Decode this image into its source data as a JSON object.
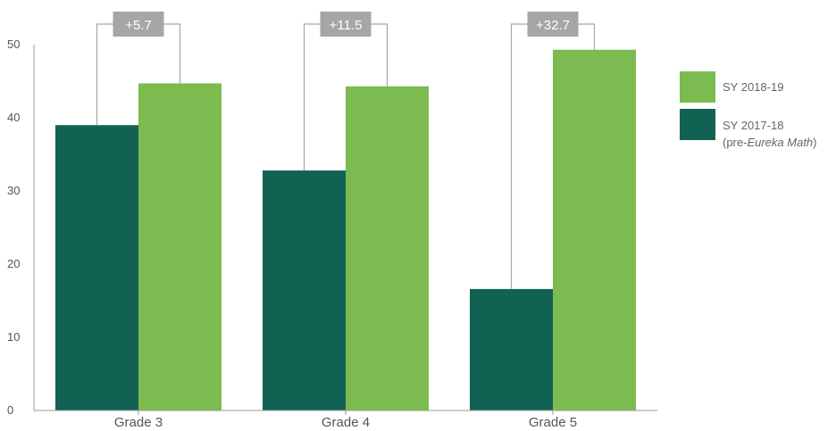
{
  "chart_data": {
    "type": "bar",
    "categories": [
      "Grade 3",
      "Grade 4",
      "Grade 5"
    ],
    "series": [
      {
        "name": "SY 2017-18",
        "name_note_prefix": "(pre-",
        "name_note_italic": "Eureka Math",
        "name_note_suffix": ")",
        "color": "#126254",
        "values": [
          39,
          32.8,
          16.6
        ]
      },
      {
        "name": "SY 2018-19",
        "color": "#7cbb4f",
        "values": [
          44.7,
          44.3,
          49.3
        ]
      }
    ],
    "differences": [
      "+5.7",
      "+11.5",
      "+32.7"
    ],
    "ylim": [
      0,
      50
    ],
    "yticks": [
      "0",
      "10",
      "20",
      "30",
      "40",
      "50"
    ],
    "legend_position": "right",
    "grid": false,
    "colors": {
      "axis": "#999999",
      "bracket": "#a6a6a6",
      "badge": "#a6a6a6"
    }
  }
}
